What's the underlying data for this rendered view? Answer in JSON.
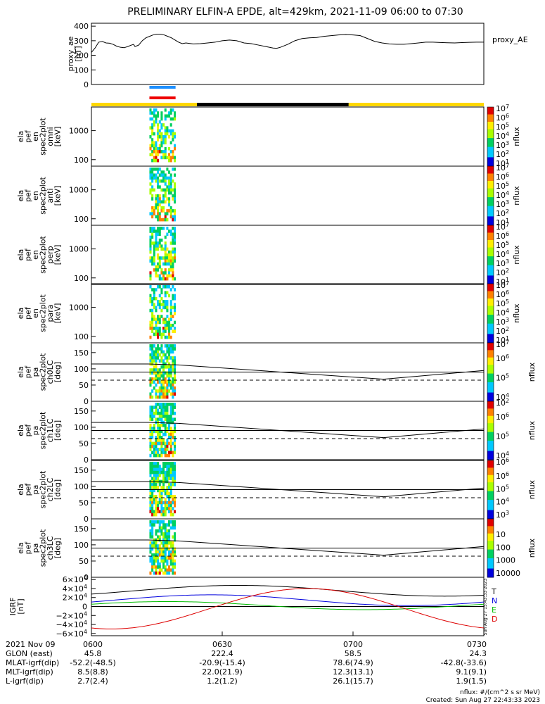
{
  "title": "PRELIMINARY ELFIN-A EPDE, alt=429km, 2021-11-09 06:00 to 07:30",
  "proxy_ae": {
    "ylabel_lines": [
      "proxy_ae",
      "[nT]"
    ],
    "right_label": "proxy_AE",
    "yticks": [
      "400",
      "300",
      "200",
      "100",
      "0"
    ],
    "ytick_values": [
      400,
      300,
      200,
      100,
      0
    ],
    "ylim": [
      0,
      420
    ],
    "series": [
      [
        0,
        220
      ],
      [
        5,
        250
      ],
      [
        10,
        290
      ],
      [
        15,
        295
      ],
      [
        20,
        285
      ],
      [
        25,
        283
      ],
      [
        30,
        275
      ],
      [
        35,
        262
      ],
      [
        40,
        255
      ],
      [
        45,
        252
      ],
      [
        50,
        260
      ],
      [
        55,
        270
      ],
      [
        58,
        275
      ],
      [
        60,
        260
      ],
      [
        65,
        270
      ],
      [
        70,
        300
      ],
      [
        75,
        320
      ],
      [
        80,
        330
      ],
      [
        85,
        340
      ],
      [
        90,
        345
      ],
      [
        95,
        345
      ],
      [
        100,
        340
      ],
      [
        105,
        330
      ],
      [
        110,
        320
      ],
      [
        115,
        305
      ],
      [
        120,
        290
      ],
      [
        125,
        280
      ],
      [
        130,
        285
      ],
      [
        140,
        278
      ],
      [
        150,
        280
      ],
      [
        160,
        285
      ],
      [
        170,
        290
      ],
      [
        180,
        300
      ],
      [
        190,
        305
      ],
      [
        200,
        300
      ],
      [
        210,
        285
      ],
      [
        220,
        280
      ],
      [
        230,
        270
      ],
      [
        240,
        260
      ],
      [
        250,
        250
      ],
      [
        255,
        248
      ],
      [
        260,
        255
      ],
      [
        270,
        275
      ],
      [
        280,
        300
      ],
      [
        290,
        315
      ],
      [
        300,
        320
      ],
      [
        310,
        322
      ],
      [
        320,
        330
      ],
      [
        330,
        335
      ],
      [
        340,
        340
      ],
      [
        350,
        342
      ],
      [
        360,
        340
      ],
      [
        370,
        335
      ],
      [
        380,
        315
      ],
      [
        390,
        295
      ],
      [
        400,
        285
      ],
      [
        410,
        278
      ],
      [
        420,
        276
      ],
      [
        430,
        276
      ],
      [
        440,
        280
      ],
      [
        450,
        285
      ],
      [
        460,
        290
      ],
      [
        470,
        290
      ],
      [
        480,
        288
      ],
      [
        490,
        286
      ],
      [
        500,
        285
      ],
      [
        510,
        287
      ],
      [
        520,
        289
      ],
      [
        530,
        290
      ],
      [
        540,
        290
      ]
    ]
  },
  "time_axis": {
    "range_min": [
      0,
      90
    ],
    "ticks": [
      {
        "t": 0,
        "label": "0600"
      },
      {
        "t": 30,
        "label": "0630"
      },
      {
        "t": 60,
        "label": "0700"
      },
      {
        "t": 90,
        "label": "0730"
      }
    ]
  },
  "status_bars": {
    "blue": [
      [
        13.3,
        19.3
      ]
    ],
    "red": [
      [
        13.3,
        19.3
      ]
    ],
    "day_night": [
      {
        "from": 0,
        "to": 24.2,
        "color": "#ffd700"
      },
      {
        "from": 24.2,
        "to": 59.0,
        "color": "#000000"
      },
      {
        "from": 59.0,
        "to": 90,
        "color": "#ffd700"
      }
    ]
  },
  "energy_panels": [
    {
      "label_lines": [
        "ela",
        "pef",
        "en",
        "spec2plot",
        "omni",
        "[keV]"
      ],
      "cb_min_exp": 1,
      "cb_max_exp": 7,
      "cb_ticks": [
        "10",
        "10",
        "10",
        "10",
        "10",
        "10",
        "10"
      ],
      "cb_exps": [
        "1",
        "2",
        "3",
        "4",
        "5",
        "6",
        "7"
      ],
      "cb_label": "nflux"
    },
    {
      "label_lines": [
        "ela",
        "pef",
        "en",
        "spec2plot",
        "anti",
        "[keV]"
      ],
      "cb_min_exp": 1,
      "cb_max_exp": 7,
      "cb_ticks": [
        "10",
        "10",
        "10",
        "10",
        "10",
        "10",
        "10"
      ],
      "cb_exps": [
        "1",
        "2",
        "3",
        "4",
        "5",
        "6",
        "7"
      ],
      "cb_label": "nflux"
    },
    {
      "label_lines": [
        "ela",
        "pef",
        "en",
        "spec2plot",
        "perp",
        "[keV]"
      ],
      "cb_min_exp": 1,
      "cb_max_exp": 7,
      "cb_ticks": [
        "10",
        "10",
        "10",
        "10",
        "10",
        "10",
        "10"
      ],
      "cb_exps": [
        "1",
        "2",
        "3",
        "4",
        "5",
        "6",
        "7"
      ],
      "cb_label": "nflux"
    },
    {
      "label_lines": [
        "ela",
        "pef",
        "en",
        "spec2plot",
        "para",
        "[keV]"
      ],
      "cb_min_exp": 1,
      "cb_max_exp": 7,
      "cb_ticks": [
        "10",
        "10",
        "10",
        "10",
        "10",
        "10",
        "10"
      ],
      "cb_exps": [
        "1",
        "2",
        "3",
        "4",
        "5",
        "6",
        "7"
      ],
      "cb_label": "nflux"
    }
  ],
  "energy_yticks": [
    "1000",
    "100"
  ],
  "pa_panels": [
    {
      "label_lines": [
        "ela",
        "pef",
        "pa",
        "spec2plot",
        "ch0LC",
        "[deg]"
      ],
      "cb_labels": [
        "10",
        "10",
        "10"
      ],
      "cb_exps": [
        "4",
        "5",
        "6"
      ],
      "cb_top_exp": "7",
      "cb_label": "nflux"
    },
    {
      "label_lines": [
        "ela",
        "pef",
        "pa",
        "spec2plot",
        "ch1LC",
        "[deg]"
      ],
      "cb_labels": [
        "10",
        "10",
        "10"
      ],
      "cb_exps": [
        "4",
        "5",
        "6"
      ],
      "cb_top_exp": "2",
      "cb_label": "nflux"
    },
    {
      "label_lines": [
        "ela",
        "pef",
        "pa",
        "spec2plot",
        "ch2LC",
        "[deg]"
      ],
      "cb_labels": [
        "10",
        "10",
        "10",
        "10"
      ],
      "cb_exps": [
        "3",
        "4",
        "5",
        "6"
      ],
      "cb_top_exp": "6",
      "cb_label": "nflux"
    },
    {
      "label_lines": [
        "ela",
        "pef",
        "pa",
        "spec2plot",
        "ch3LC",
        "[deg]"
      ],
      "cb_labels": [
        "10000",
        "1000",
        "100",
        "10"
      ],
      "cb_exps": [
        "",
        "",
        "",
        ""
      ],
      "cb_top_exp": "",
      "cb_label": "nflux"
    }
  ],
  "pa_yticks": [
    "150",
    "100",
    "50",
    "0"
  ],
  "pa_ytick_values": [
    150,
    100,
    50,
    0
  ],
  "igrf": {
    "ylabel_lines": [
      "IGRF",
      "[nT]"
    ],
    "yticks": [
      "6×10",
      "4×10",
      "2×10",
      "0",
      "−2×10",
      "−4×10",
      "−6×10"
    ],
    "ytick_exp": "4",
    "ytick_values": [
      60000,
      40000,
      20000,
      0,
      -20000,
      -40000,
      -60000
    ],
    "ylim": [
      -65000,
      65000
    ],
    "legend": [
      {
        "label": "T",
        "color": "#000000"
      },
      {
        "label": "N",
        "color": "#0000dd"
      },
      {
        "label": "E",
        "color": "#00bb00"
      },
      {
        "label": "D",
        "color": "#dd0000"
      }
    ],
    "side_note": "Sun Aug 27 15:43:33 2023"
  },
  "ephemeris": {
    "row_labels": [
      "2021 Nov 09",
      "GLON (east)",
      "MLAT-igrf(dip)",
      "MLT-igrf(dip)",
      "L-igrf(dip)"
    ],
    "columns": [
      {
        "t": 0,
        "values": [
          "0600",
          "45.8",
          "-52.2(-48.5)",
          "8.5(8.8)",
          "2.7(2.4)"
        ]
      },
      {
        "t": 30,
        "values": [
          "0630",
          "222.4",
          "-20.9(-15.4)",
          "22.0(21.9)",
          "1.2(1.2)"
        ]
      },
      {
        "t": 60,
        "values": [
          "0700",
          "58.5",
          "78.6(74.9)",
          "12.3(13.1)",
          "26.1(15.7)"
        ]
      },
      {
        "t": 90,
        "values": [
          "0730",
          "24.3",
          "-42.8(-33.6)",
          "9.1(9.1)",
          "1.9(1.5)"
        ]
      }
    ]
  },
  "footer": {
    "units": "nflux: #/(cm^2 s sr MeV)",
    "created": "Created: Sun Aug 27 22:43:33 2023"
  }
}
